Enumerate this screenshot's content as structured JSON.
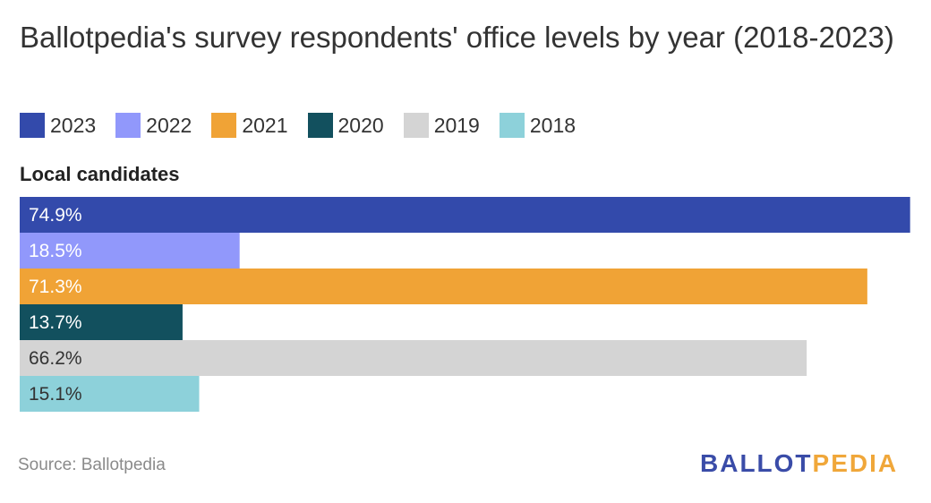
{
  "title": "Ballotpedia's survey respondents' office levels by year (2018-2023)",
  "subtitle": "Local candidates",
  "source": "Source: Ballotpedia",
  "logo": {
    "part1": "BALLOT",
    "part2": "PEDIA"
  },
  "legend": [
    {
      "label": "2023",
      "color": "#334aab"
    },
    {
      "label": "2022",
      "color": "#9198fb"
    },
    {
      "label": "2021",
      "color": "#f0a336"
    },
    {
      "label": "2020",
      "color": "#12505e"
    },
    {
      "label": "2019",
      "color": "#d4d4d4"
    },
    {
      "label": "2018",
      "color": "#8dd1da"
    }
  ],
  "chart_data": {
    "type": "bar",
    "orientation": "horizontal",
    "group": "Local candidates",
    "categories": [
      "2023",
      "2022",
      "2021",
      "2020",
      "2019",
      "2018"
    ],
    "values": [
      74.9,
      18.5,
      71.3,
      13.7,
      66.2,
      15.1
    ],
    "value_labels": [
      "74.9%",
      "18.5%",
      "71.3%",
      "13.7%",
      "66.2%",
      "15.1%"
    ],
    "colors": [
      "#334aab",
      "#9198fb",
      "#f0a336",
      "#12505e",
      "#d4d4d4",
      "#8dd1da"
    ],
    "label_colors": [
      "#ffffff",
      "#ffffff",
      "#ffffff",
      "#ffffff",
      "#333333",
      "#333333"
    ],
    "xlim": [
      0,
      75
    ],
    "grid": false,
    "legend_position": "top"
  }
}
